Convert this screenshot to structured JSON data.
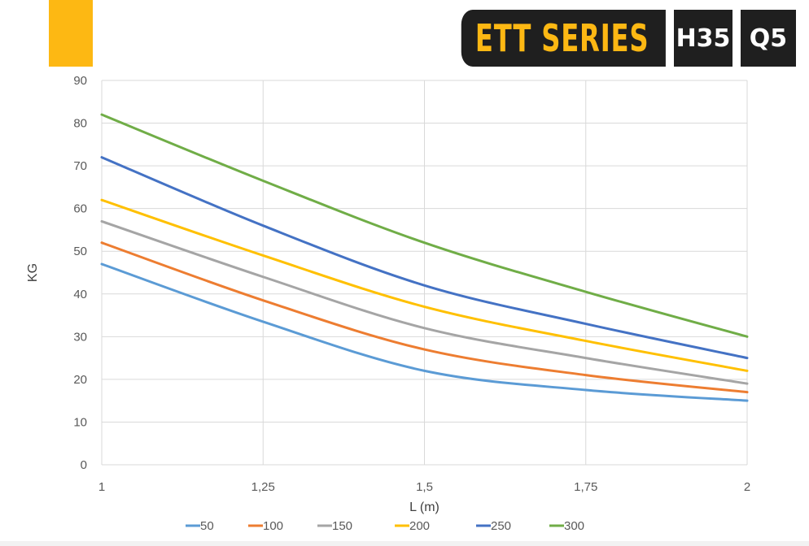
{
  "header": {
    "series_title": "ETT SERIES",
    "badge_1": "H35",
    "badge_2": "Q5",
    "accent_color": "#FDB813",
    "badge_color": "#1F1F1F"
  },
  "chart_data": {
    "type": "line",
    "title": "",
    "xlabel": "L (m)",
    "ylabel": "KG",
    "x": [
      1,
      1.25,
      1.5,
      1.75,
      2
    ],
    "x_tick_labels": [
      "1",
      "1,25",
      "1,5",
      "1,75",
      "2"
    ],
    "xlim": [
      1,
      2
    ],
    "ylim": [
      0,
      90
    ],
    "y_ticks": [
      0,
      10,
      20,
      30,
      40,
      50,
      60,
      70,
      80,
      90
    ],
    "grid": true,
    "legend_position": "bottom",
    "series": [
      {
        "name": "50",
        "color": "#5B9BD5",
        "values": [
          47,
          33.5,
          22,
          17.5,
          15
        ]
      },
      {
        "name": "100",
        "color": "#ED7D31",
        "values": [
          52,
          38.5,
          27,
          21,
          17
        ]
      },
      {
        "name": "150",
        "color": "#A5A5A5",
        "values": [
          57,
          44,
          32,
          25,
          19
        ]
      },
      {
        "name": "200",
        "color": "#FFC000",
        "values": [
          62,
          49,
          37,
          29,
          22
        ]
      },
      {
        "name": "250",
        "color": "#4472C4",
        "values": [
          72,
          56,
          42,
          33,
          25
        ]
      },
      {
        "name": "300",
        "color": "#70AD47",
        "values": [
          82,
          66.5,
          52,
          40.5,
          30
        ]
      }
    ]
  }
}
